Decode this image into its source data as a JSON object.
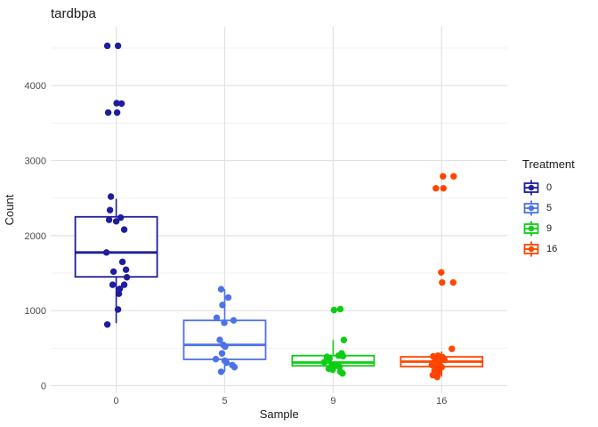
{
  "chart": {
    "title": "tardbpa",
    "xlabel": "Sample",
    "ylabel": "Count",
    "legend_title": "Treatment"
  },
  "chart_data": {
    "type": "boxplot",
    "subtype": "boxplot-with-jittered-points",
    "title": "tardbpa",
    "xlabel": "Sample",
    "ylabel": "Count",
    "categories": [
      "0",
      "5",
      "9",
      "16"
    ],
    "yticks": [
      0,
      1000,
      2000,
      3000,
      4000
    ],
    "yticks_minor": [
      500,
      1500,
      2500,
      3500,
      4500
    ],
    "ylim": [
      -110,
      4790
    ],
    "grid": "major+minor",
    "colors": {
      "grid_major": "#e2e2e2",
      "grid_minor": "#f1f1f1",
      "tick_text": "#4d4d4d",
      "text": "#1a1a1a"
    },
    "legend": {
      "title": "Treatment",
      "position": "right",
      "labels": [
        "0",
        "5",
        "9",
        "16"
      ]
    },
    "groups": [
      {
        "sample": "0",
        "treatment": "0",
        "color": "#1d1d9e",
        "box": {
          "q1": 1450,
          "median": 1775,
          "q3": 2250,
          "whisker_low": 833,
          "whisker_high": 2490
        },
        "points": [
          [
            -10,
            4530
          ],
          [
            2,
            4530
          ],
          [
            0.5,
            3765
          ],
          [
            6,
            3760
          ],
          [
            -9,
            3640
          ],
          [
            1,
            3640
          ],
          [
            -6,
            2520
          ],
          [
            -7,
            2340
          ],
          [
            -8,
            2210
          ],
          [
            0,
            2190
          ],
          [
            5,
            2240
          ],
          [
            9,
            2080
          ],
          [
            -11,
            1775
          ],
          [
            7,
            1650
          ],
          [
            -3,
            1520
          ],
          [
            11,
            1545
          ],
          [
            12,
            1445
          ],
          [
            -4,
            1345
          ],
          [
            9,
            1345
          ],
          [
            4,
            1290
          ],
          [
            3,
            1225
          ],
          [
            2,
            1015
          ],
          [
            -10,
            815
          ]
        ]
      },
      {
        "sample": "5",
        "treatment": "5",
        "color": "#4d72e8",
        "box": {
          "q1": 350,
          "median": 543,
          "q3": 869,
          "whisker_low": 185,
          "whisker_high": 1285
        },
        "points": [
          [
            -4,
            1285
          ],
          [
            4,
            1175
          ],
          [
            -2.5,
            1075
          ],
          [
            -9,
            905
          ],
          [
            10,
            870
          ],
          [
            -0.5,
            838
          ],
          [
            -5.5,
            610
          ],
          [
            -1.5,
            543
          ],
          [
            0.5,
            520
          ],
          [
            -3,
            430
          ],
          [
            -10,
            353
          ],
          [
            0,
            333
          ],
          [
            2,
            306
          ],
          [
            8.5,
            274
          ],
          [
            11,
            246
          ],
          [
            -4,
            185
          ]
        ]
      },
      {
        "sample": "9",
        "treatment": "9",
        "color": "#0bce14",
        "box": {
          "q1": 264,
          "median": 308,
          "q3": 400,
          "whisker_low": 165,
          "whisker_high": 608
        },
        "points": [
          [
            1,
            1008
          ],
          [
            8,
            1020
          ],
          [
            12,
            608
          ],
          [
            9.5,
            430
          ],
          [
            6,
            400
          ],
          [
            11,
            393
          ],
          [
            -7,
            384
          ],
          [
            -4,
            361
          ],
          [
            -10,
            313
          ],
          [
            -1.5,
            274
          ],
          [
            2.5,
            265
          ],
          [
            7,
            253
          ],
          [
            -5,
            226
          ],
          [
            -0.5,
            214
          ],
          [
            8,
            187
          ],
          [
            10.5,
            163
          ]
        ]
      },
      {
        "sample": "16",
        "treatment": "16",
        "color": "#ff4500",
        "box": {
          "q1": 253,
          "median": 320,
          "q3": 384,
          "whisker_low": 120,
          "whisker_high": 455
        },
        "points": [
          [
            1.5,
            2790
          ],
          [
            13.5,
            2790
          ],
          [
            -6.5,
            2630
          ],
          [
            2,
            2630
          ],
          [
            -0.5,
            1510
          ],
          [
            0.5,
            1375
          ],
          [
            13,
            1375
          ],
          [
            11.5,
            490
          ],
          [
            -9.5,
            390
          ],
          [
            -4,
            400
          ],
          [
            1,
            380
          ],
          [
            -7,
            330
          ],
          [
            -2,
            318
          ],
          [
            3,
            345
          ],
          [
            -11,
            275
          ],
          [
            -5,
            258
          ],
          [
            0,
            248
          ],
          [
            -8,
            200
          ],
          [
            -3,
            178
          ],
          [
            -10,
            140
          ],
          [
            -5,
            115
          ]
        ]
      }
    ]
  }
}
